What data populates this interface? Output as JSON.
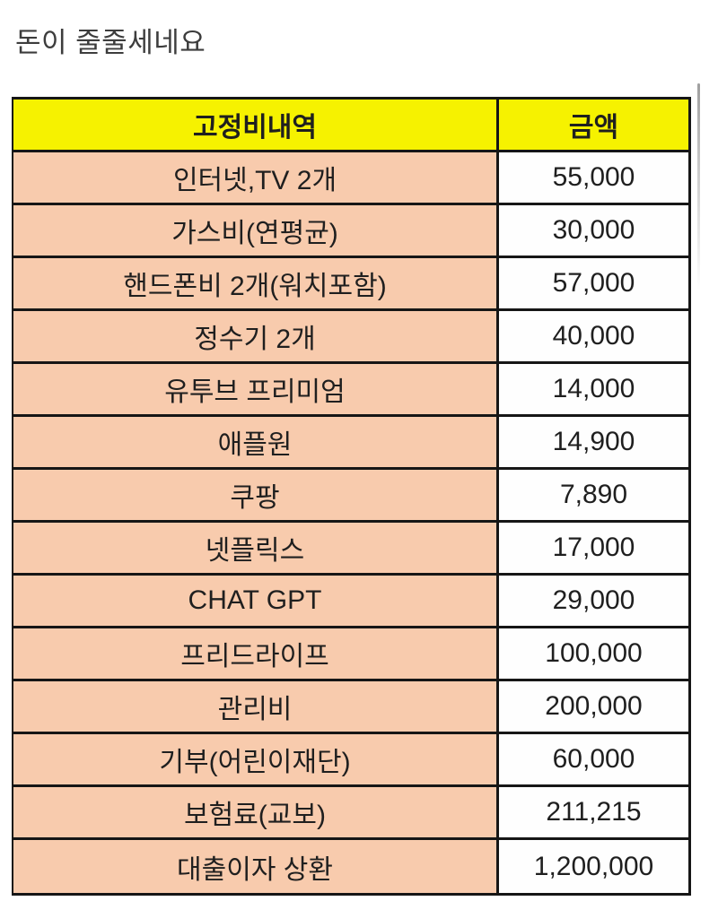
{
  "page": {
    "title": "돈이 줄줄세네요"
  },
  "table": {
    "headers": {
      "item": "고정비내역",
      "amount": "금액"
    },
    "rows": [
      {
        "label": "인터넷,TV 2개",
        "value": "55,000"
      },
      {
        "label": "가스비(연평균)",
        "value": "30,000"
      },
      {
        "label": "핸드폰비 2개(워치포함)",
        "value": "57,000"
      },
      {
        "label": "정수기 2개",
        "value": "40,000"
      },
      {
        "label": "유투브 프리미엄",
        "value": "14,000"
      },
      {
        "label": "애플원",
        "value": "14,900"
      },
      {
        "label": "쿠팡",
        "value": "7,890"
      },
      {
        "label": "넷플릭스",
        "value": "17,000"
      },
      {
        "label": "CHAT GPT",
        "value": "29,000"
      },
      {
        "label": "프리드라이프",
        "value": "100,000"
      },
      {
        "label": "관리비",
        "value": "200,000"
      },
      {
        "label": "기부(어린이재단)",
        "value": "60,000"
      },
      {
        "label": "보험료(교보)",
        "value": "211,215"
      },
      {
        "label": "대출이자 상환",
        "value": "1,200,000"
      }
    ]
  },
  "colors": {
    "header_bg": "#f6f200",
    "label_bg": "#f8cbad",
    "value_bg": "#fefefe",
    "border": "#161616",
    "title_text": "#3d3d3d"
  }
}
